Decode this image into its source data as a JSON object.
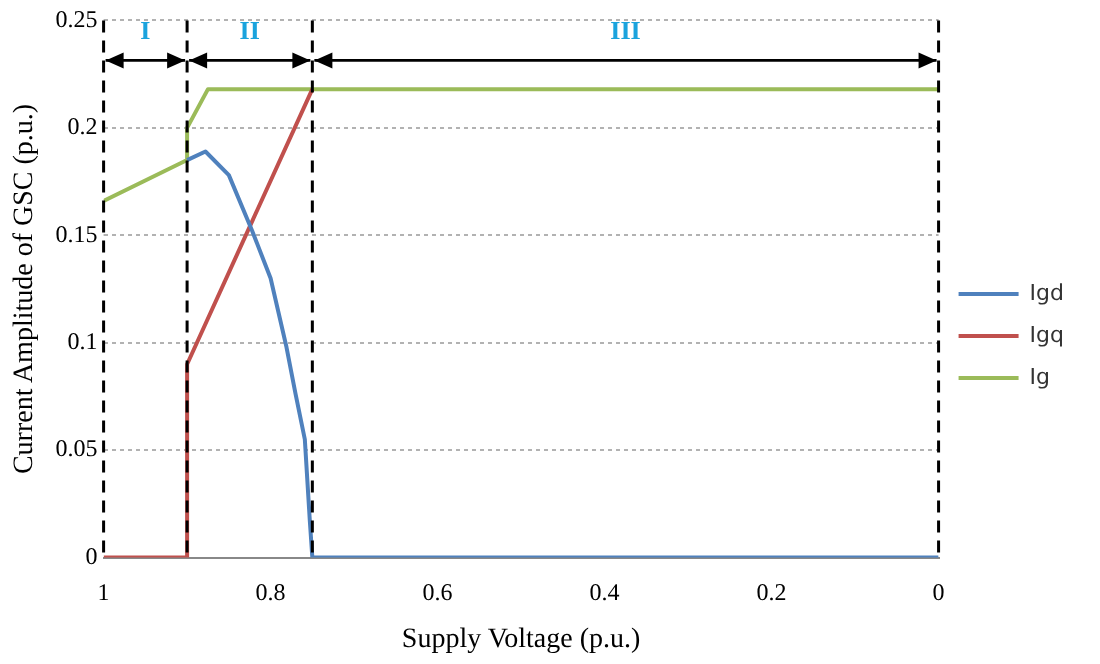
{
  "chart_data": {
    "type": "line",
    "xlabel": "Supply Voltage (p.u.)",
    "ylabel": "Current Amplitude of GSC (p.u.)",
    "xlim": [
      1,
      0
    ],
    "xticks": [
      1,
      0.8,
      0.6,
      0.4,
      0.2,
      0
    ],
    "ylim": [
      0,
      0.25
    ],
    "yticks": [
      0,
      0.05,
      0.1,
      0.15,
      0.2,
      0.25
    ],
    "grid": "y",
    "legend": "right",
    "marker": "none",
    "line_style": "solid",
    "series": [
      {
        "name": "Igd",
        "color": "#4f81bd",
        "x": [
          0.9,
          0.878,
          0.85,
          0.822,
          0.8,
          0.781,
          0.77,
          0.759,
          0.753,
          0.75,
          0
        ],
        "values": [
          0.185,
          0.189,
          0.178,
          0.152,
          0.13,
          0.098,
          0.076,
          0.055,
          0.017,
          0,
          0
        ]
      },
      {
        "name": "Igq",
        "color": "#c0504d",
        "x": [
          1,
          0.9,
          0.9,
          0.75
        ],
        "values": [
          0,
          0,
          0.09,
          0.218
        ]
      },
      {
        "name": "Ig",
        "color": "#9bbb59",
        "x": [
          1,
          0.9,
          0.9,
          0.875,
          0
        ],
        "values": [
          0.166,
          0.185,
          0.2,
          0.218,
          0.218
        ]
      }
    ],
    "ref_lines": [
      {
        "axis": "x",
        "value": 1,
        "line_style": "dashed",
        "color": "#000000"
      },
      {
        "axis": "x",
        "value": 0.9,
        "line_style": "dashed",
        "color": "#000000"
      },
      {
        "axis": "x",
        "value": 0.75,
        "line_style": "dashed",
        "color": "#000000"
      },
      {
        "axis": "x",
        "value": 0,
        "line_style": "dashed",
        "color": "#000000"
      }
    ],
    "annotations": [
      "I",
      "II",
      "III"
    ]
  }
}
